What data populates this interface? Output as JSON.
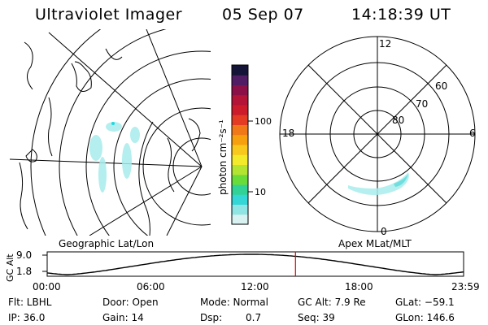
{
  "header": {
    "title": "Ultraviolet Imager",
    "date": "05 Sep 07",
    "time": "14:18:39 UT"
  },
  "geo_panel": {
    "caption": "Geographic Lat/Lon"
  },
  "polar_panel": {
    "caption": "Apex MLat/MLT",
    "mlt_labels": {
      "top": "12",
      "left": "18",
      "right": "6",
      "bottom": "0"
    },
    "lat_labels": [
      "60",
      "70",
      "80"
    ]
  },
  "colorbar": {
    "unit_label": "photon cm⁻²s⁻¹",
    "ticks": [
      "100",
      "10"
    ],
    "colors": [
      "#d8f2f2",
      "#8fe4e4",
      "#35d6d6",
      "#32d296",
      "#6adc3a",
      "#b4e432",
      "#f2ea2a",
      "#f8c81e",
      "#f6a010",
      "#f07818",
      "#e43c24",
      "#cc1c2c",
      "#b41438",
      "#8c1048",
      "#501c64",
      "#141438"
    ]
  },
  "altitude": {
    "ylabel": "GC Alt",
    "y_ticks": [
      "9.0",
      "1.8"
    ],
    "x_ticks": [
      "00:00",
      "06:00",
      "12:00",
      "18:00",
      "23:59"
    ],
    "current_time_marker_color": "#e00000"
  },
  "info": {
    "row1": {
      "flt": "Flt: LBHL",
      "door": "Door: Open",
      "mode": "Mode: Normal",
      "gc_alt": "GC Alt: 7.9 Re",
      "glat": "GLat: −59.1"
    },
    "row2": {
      "ip": "IP: 36.0",
      "gain": "Gain: 14",
      "dsp_label": "Dsp:",
      "dsp_value": "0.7",
      "seq": "Seq: 39",
      "glon": "GLon: 146.6"
    }
  }
}
